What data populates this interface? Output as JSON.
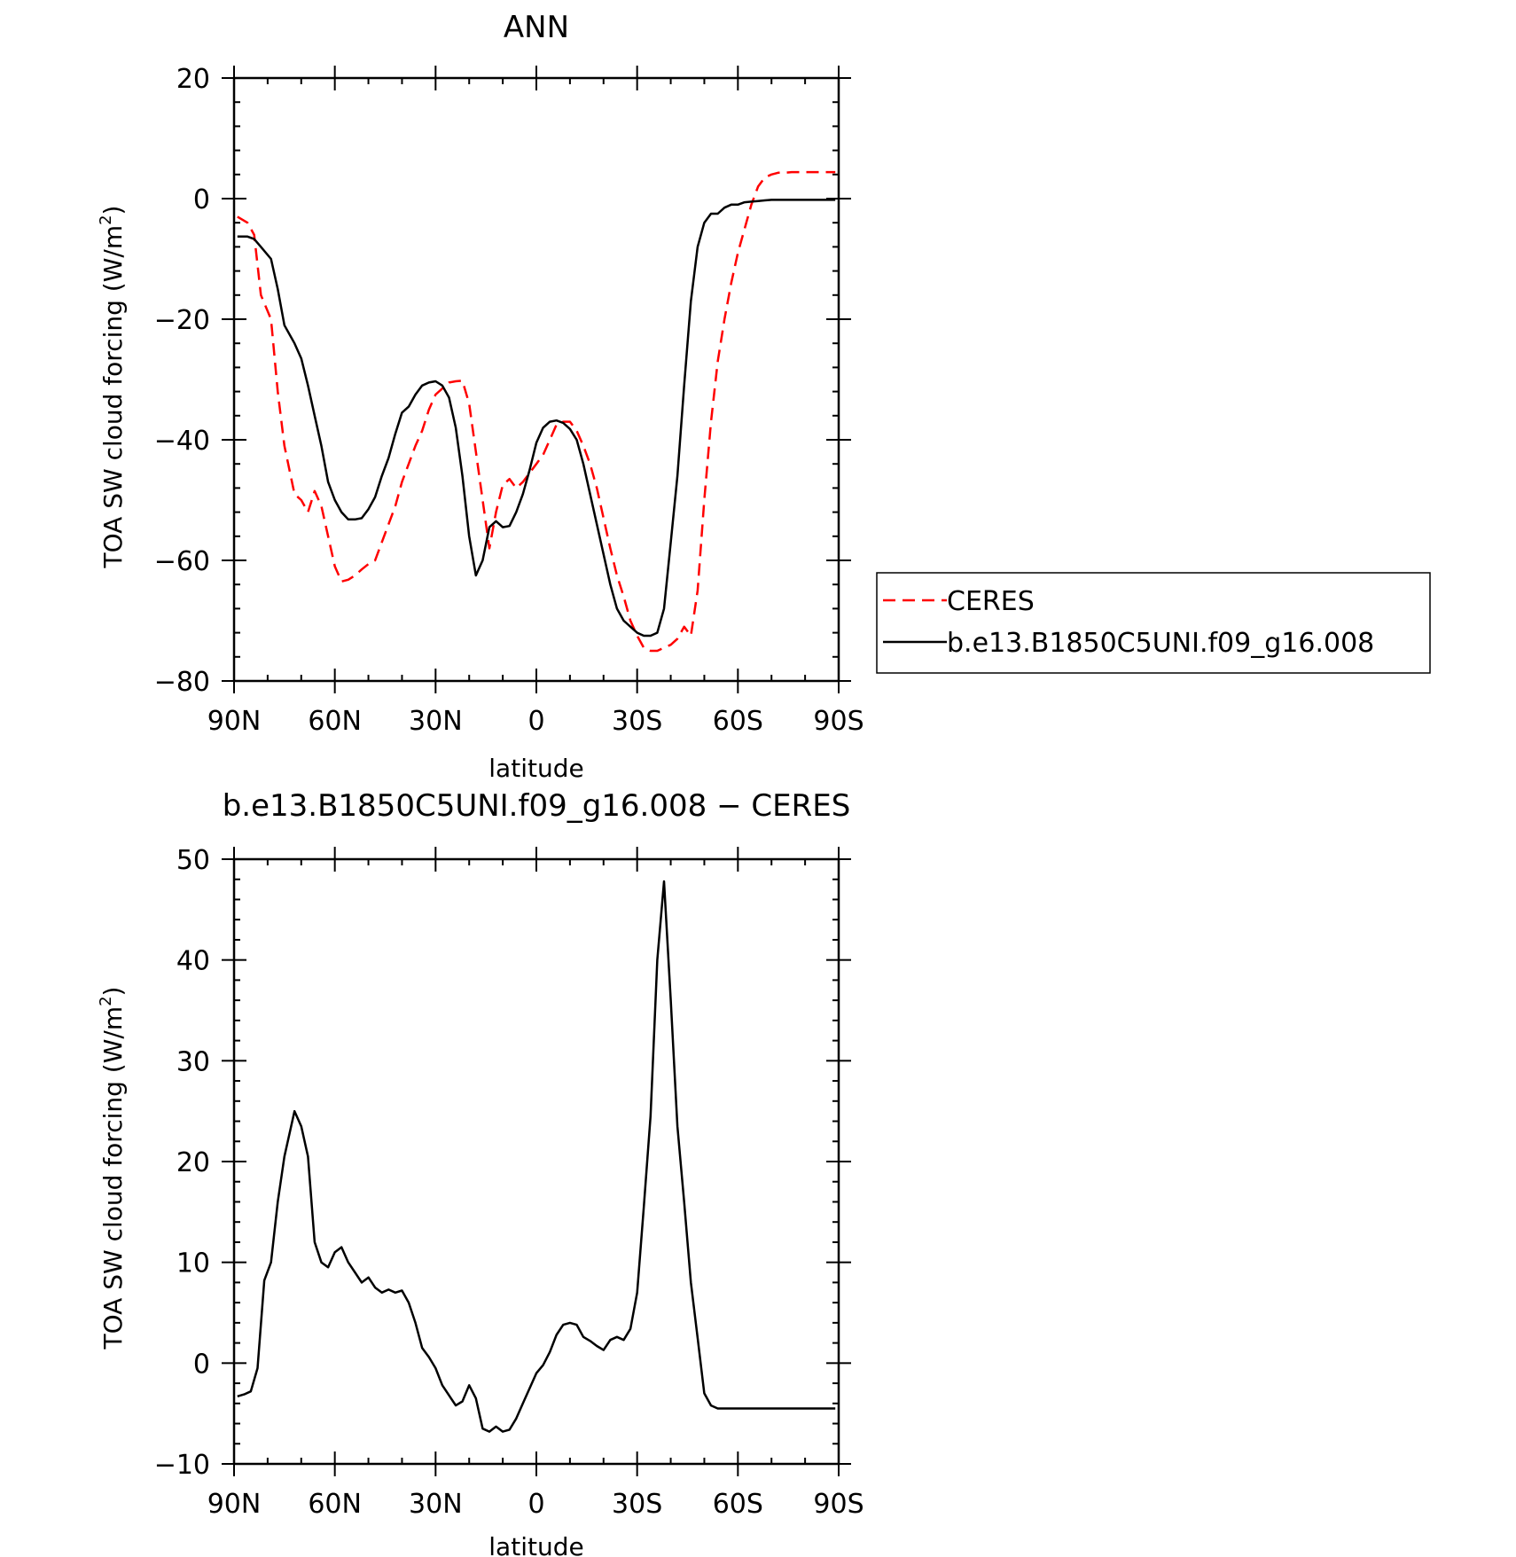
{
  "chart_data": [
    {
      "type": "line",
      "title": "ANN",
      "xlabel": "latitude",
      "ylabel": "TOA SW cloud forcing (W/m",
      "ylabel_sup": "2",
      "ylabel_tail": ")",
      "xlim": [
        90,
        -90
      ],
      "ylim": [
        -80,
        20
      ],
      "yticks": [
        20,
        0,
        -20,
        -40,
        -60,
        -80
      ],
      "xticks": [
        90,
        60,
        30,
        0,
        -30,
        -60,
        -90
      ],
      "xtick_labels": [
        "90N",
        "60N",
        "30N",
        "0",
        "30S",
        "60S",
        "90S"
      ],
      "legend_position": "right",
      "series": [
        {
          "name": "CERES",
          "color": "#ff0000",
          "style": "dashed",
          "x": [
            89,
            86,
            84,
            82,
            79,
            77,
            75,
            72,
            70,
            68,
            66,
            64,
            62,
            60,
            58,
            56,
            54,
            52,
            50,
            48,
            46,
            44,
            42,
            40,
            38,
            36,
            34,
            32,
            30,
            28,
            26,
            24,
            22,
            20,
            18,
            16,
            14,
            12,
            10,
            8,
            6,
            4,
            2,
            0,
            -2,
            -4,
            -6,
            -8,
            -10,
            -12,
            -14,
            -16,
            -18,
            -20,
            -22,
            -24,
            -26,
            -28,
            -30,
            -32,
            -34,
            -36,
            -38,
            -40,
            -42,
            -44,
            -46,
            -48,
            -50,
            -52,
            -54,
            -56,
            -58,
            -60,
            -62,
            -64,
            -66,
            -68,
            -70,
            -72,
            -74,
            -76,
            -78,
            -80,
            -82,
            -84,
            -86,
            -88,
            -89
          ],
          "y": [
            -3,
            -4,
            -6,
            -16,
            -20,
            -32,
            -41,
            -49,
            -50,
            -52,
            -48.5,
            -51,
            -56,
            -61,
            -63.5,
            -63.2,
            -62.5,
            -61.5,
            -60.6,
            -60,
            -57,
            -54,
            -51,
            -47,
            -44,
            -41,
            -38.5,
            -35,
            -32.5,
            -31.5,
            -30.5,
            -30.3,
            -30.2,
            -34,
            -42,
            -50,
            -58,
            -52,
            -47.5,
            -46.5,
            -48,
            -47,
            -45.5,
            -44,
            -42.5,
            -40,
            -37.5,
            -37,
            -37,
            -38.5,
            -41,
            -44,
            -48,
            -53,
            -58,
            -62.5,
            -66,
            -70,
            -72.5,
            -74.5,
            -75,
            -75,
            -74.5,
            -74,
            -73,
            -71,
            -72.5,
            -65,
            -50,
            -37,
            -27,
            -20,
            -14,
            -9,
            -5,
            -1,
            2,
            3.5,
            4,
            4.3,
            4.3,
            4.4,
            4.4,
            4.4,
            4.4,
            4.4,
            4.4,
            4.4,
            4.4
          ],
          "legend_label": "CERES"
        },
        {
          "name": "b.e13.B1850C5UNI.f09_g16.008",
          "color": "#000000",
          "style": "solid",
          "x": [
            89,
            86,
            84,
            82,
            79,
            77,
            75,
            72,
            70,
            68,
            66,
            64,
            62,
            60,
            58,
            56,
            54,
            52,
            50,
            48,
            46,
            44,
            42,
            40,
            38,
            36,
            34,
            32,
            30,
            28,
            26,
            24,
            22,
            20,
            18,
            16,
            14,
            12,
            10,
            8,
            6,
            4,
            2,
            0,
            -2,
            -4,
            -6,
            -8,
            -10,
            -12,
            -14,
            -16,
            -18,
            -20,
            -22,
            -24,
            -26,
            -28,
            -30,
            -32,
            -34,
            -36,
            -38,
            -40,
            -42,
            -44,
            -46,
            -48,
            -50,
            -52,
            -54,
            -56,
            -58,
            -60,
            -62,
            -64,
            -66,
            -68,
            -70,
            -72,
            -74,
            -76,
            -78,
            -80,
            -82,
            -84,
            -86,
            -88,
            -89
          ],
          "y": [
            -6.3,
            -6.3,
            -6.7,
            -8,
            -10,
            -15,
            -21,
            -24,
            -26.5,
            -31,
            -36,
            -41,
            -47,
            -50,
            -52,
            -53.2,
            -53.2,
            -53,
            -51.5,
            -49.5,
            -46,
            -43,
            -39,
            -35.5,
            -34.5,
            -32.5,
            -31,
            -30.5,
            -30.3,
            -31,
            -33,
            -38,
            -46,
            -56,
            -62.5,
            -60,
            -54.5,
            -53.5,
            -54.5,
            -54.3,
            -52,
            -49,
            -45,
            -40.5,
            -38,
            -37,
            -36.8,
            -37.2,
            -38.2,
            -40,
            -44,
            -49,
            -54,
            -59,
            -64,
            -68,
            -70,
            -71,
            -72,
            -72.5,
            -72.5,
            -72,
            -68,
            -57,
            -46,
            -31,
            -17,
            -8,
            -4,
            -2.5,
            -2.5,
            -1.5,
            -1,
            -1,
            -0.6,
            -0.5,
            -0.4,
            -0.3,
            -0.2,
            -0.2,
            -0.2,
            -0.2,
            -0.2,
            -0.2,
            -0.2,
            -0.2,
            -0.2,
            -0.2,
            -0.2
          ],
          "legend_label": "b.e13.B1850C5UNI.f09_g16.008"
        }
      ]
    },
    {
      "type": "line",
      "title": "b.e13.B1850C5UNI.f09_g16.008 − CERES",
      "xlabel": "latitude",
      "ylabel": "TOA SW cloud forcing (W/m",
      "ylabel_sup": "2",
      "ylabel_tail": ")",
      "xlim": [
        90,
        -90
      ],
      "ylim": [
        -10,
        50
      ],
      "yticks": [
        50,
        40,
        30,
        20,
        10,
        0,
        -10
      ],
      "xticks": [
        90,
        60,
        30,
        0,
        -30,
        -60,
        -90
      ],
      "xtick_labels": [
        "90N",
        "60N",
        "30N",
        "0",
        "30S",
        "60S",
        "90S"
      ],
      "series": [
        {
          "color": "#000000",
          "style": "solid",
          "x": [
            89,
            87,
            85,
            83,
            81,
            79,
            77,
            75,
            72,
            70,
            68,
            66,
            64,
            62,
            60,
            58,
            56,
            54,
            52,
            50,
            48,
            46,
            44,
            42,
            40,
            38,
            36,
            34,
            32,
            30,
            28,
            26,
            24,
            22,
            20,
            18,
            16,
            14,
            12,
            10,
            8,
            6,
            4,
            2,
            0,
            -2,
            -4,
            -6,
            -8,
            -10,
            -12,
            -14,
            -16,
            -18,
            -20,
            -22,
            -24,
            -26,
            -28,
            -30,
            -32,
            -34,
            -36,
            -38,
            -40,
            -42,
            -44,
            -46,
            -48,
            -50,
            -52,
            -54,
            -56,
            -58,
            -60,
            -62,
            -64,
            -66,
            -68,
            -70,
            -72,
            -74,
            -76,
            -78,
            -80,
            -82,
            -84,
            -86,
            -88,
            -89
          ],
          "y": [
            -3.3,
            -3.1,
            -2.8,
            -0.5,
            8.2,
            10,
            16,
            20.5,
            25,
            23.5,
            20.5,
            12,
            10,
            9.5,
            11,
            11.5,
            10,
            9,
            8,
            8.5,
            7.5,
            7,
            7.3,
            7,
            7.2,
            6,
            4,
            1.5,
            0.6,
            -0.5,
            -2.2,
            -3.2,
            -4.2,
            -3.8,
            -2.2,
            -3.5,
            -6.5,
            -6.8,
            -6.3,
            -6.8,
            -6.6,
            -5.5,
            -4,
            -2.5,
            -1,
            -0.2,
            1.1,
            2.8,
            3.8,
            4,
            3.8,
            2.6,
            2.2,
            1.7,
            1.3,
            2.3,
            2.6,
            2.3,
            3.4,
            7,
            15.5,
            24.5,
            40,
            47.8,
            36,
            23.5,
            16,
            8,
            2.5,
            -3,
            -4.2,
            -4.5,
            -4.5,
            -4.5,
            -4.5,
            -4.5,
            -4.5,
            -4.5,
            -4.5,
            -4.5,
            -4.5,
            -4.5,
            -4.5,
            -4.5,
            -4.5,
            -4.5,
            -4.5,
            -4.5,
            -4.5,
            -4.5
          ]
        }
      ]
    }
  ]
}
